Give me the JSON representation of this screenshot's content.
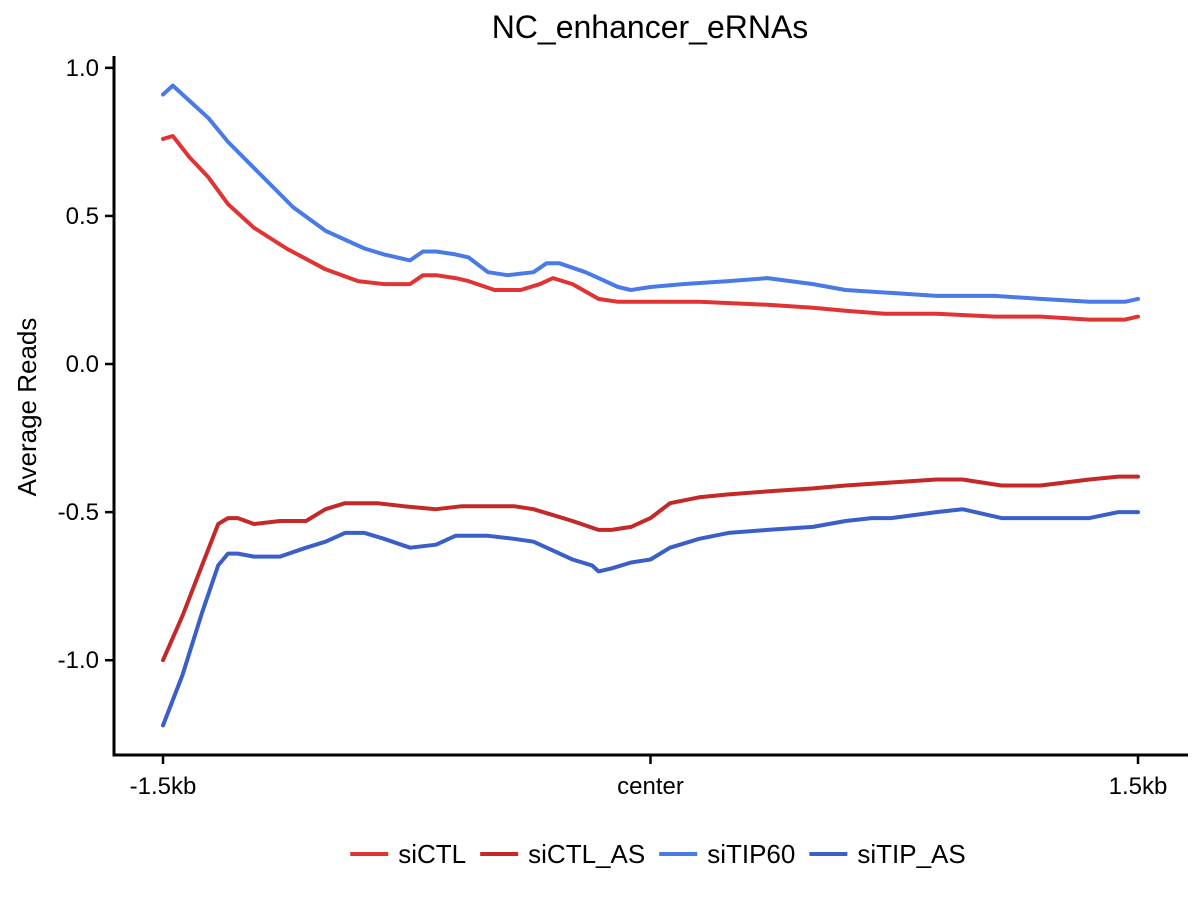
{
  "chart_data": {
    "type": "line",
    "title": "NC_enhancer_eRNAs",
    "xlabel": "",
    "ylabel": "Average Reads",
    "xlim": [
      -1.5,
      1.5
    ],
    "ylim": [
      -1.32,
      1.04
    ],
    "x_ticks": [
      {
        "value": -1.5,
        "label": "-1.5kb"
      },
      {
        "value": 0,
        "label": "center"
      },
      {
        "value": 1.5,
        "label": "1.5kb"
      }
    ],
    "y_ticks": [
      {
        "value": 1.0,
        "label": "1.0"
      },
      {
        "value": 0.5,
        "label": "0.5"
      },
      {
        "value": 0.0,
        "label": "0.0"
      },
      {
        "value": -0.5,
        "label": "-0.5"
      },
      {
        "value": -1.0,
        "label": "-1.0"
      }
    ],
    "legend_position": "bottom",
    "series": [
      {
        "name": "siCTL",
        "color": "#e03434",
        "x": [
          -1.5,
          -1.47,
          -1.42,
          -1.36,
          -1.3,
          -1.22,
          -1.12,
          -1.0,
          -0.9,
          -0.82,
          -0.74,
          -0.7,
          -0.66,
          -0.6,
          -0.56,
          -0.48,
          -0.4,
          -0.34,
          -0.3,
          -0.24,
          -0.16,
          -0.1,
          -0.06,
          0.0,
          0.15,
          0.36,
          0.5,
          0.6,
          0.72,
          0.88,
          1.06,
          1.2,
          1.35,
          1.46,
          1.5
        ],
        "y": [
          0.76,
          0.77,
          0.7,
          0.63,
          0.54,
          0.46,
          0.39,
          0.32,
          0.28,
          0.27,
          0.27,
          0.3,
          0.3,
          0.29,
          0.28,
          0.25,
          0.25,
          0.27,
          0.29,
          0.27,
          0.22,
          0.21,
          0.21,
          0.21,
          0.21,
          0.2,
          0.19,
          0.18,
          0.17,
          0.17,
          0.16,
          0.16,
          0.15,
          0.15,
          0.16
        ]
      },
      {
        "name": "siCTL_AS",
        "color": "#c42828",
        "x": [
          -1.5,
          -1.44,
          -1.38,
          -1.33,
          -1.3,
          -1.27,
          -1.22,
          -1.14,
          -1.06,
          -1.0,
          -0.94,
          -0.84,
          -0.76,
          -0.66,
          -0.58,
          -0.5,
          -0.42,
          -0.36,
          -0.3,
          -0.24,
          -0.16,
          -0.12,
          -0.06,
          0.0,
          0.06,
          0.15,
          0.24,
          0.36,
          0.5,
          0.6,
          0.74,
          0.88,
          0.96,
          1.08,
          1.2,
          1.35,
          1.44,
          1.5
        ],
        "y": [
          -1.0,
          -0.85,
          -0.68,
          -0.54,
          -0.52,
          -0.52,
          -0.54,
          -0.53,
          -0.53,
          -0.49,
          -0.47,
          -0.47,
          -0.48,
          -0.49,
          -0.48,
          -0.48,
          -0.48,
          -0.49,
          -0.51,
          -0.53,
          -0.56,
          -0.56,
          -0.55,
          -0.52,
          -0.47,
          -0.45,
          -0.44,
          -0.43,
          -0.42,
          -0.41,
          -0.4,
          -0.39,
          -0.39,
          -0.41,
          -0.41,
          -0.39,
          -0.38,
          -0.38
        ]
      },
      {
        "name": "siTIP60",
        "color": "#4a7ae6",
        "x": [
          -1.5,
          -1.47,
          -1.42,
          -1.36,
          -1.3,
          -1.2,
          -1.1,
          -1.0,
          -0.88,
          -0.82,
          -0.74,
          -0.7,
          -0.66,
          -0.6,
          -0.56,
          -0.5,
          -0.44,
          -0.36,
          -0.32,
          -0.28,
          -0.2,
          -0.16,
          -0.1,
          -0.06,
          0.0,
          0.1,
          0.24,
          0.36,
          0.5,
          0.6,
          0.74,
          0.88,
          1.06,
          1.2,
          1.35,
          1.46,
          1.5
        ],
        "y": [
          0.91,
          0.94,
          0.89,
          0.83,
          0.75,
          0.64,
          0.53,
          0.45,
          0.39,
          0.37,
          0.35,
          0.38,
          0.38,
          0.37,
          0.36,
          0.31,
          0.3,
          0.31,
          0.34,
          0.34,
          0.31,
          0.29,
          0.26,
          0.25,
          0.26,
          0.27,
          0.28,
          0.29,
          0.27,
          0.25,
          0.24,
          0.23,
          0.23,
          0.22,
          0.21,
          0.21,
          0.22
        ]
      },
      {
        "name": "siTIP_AS",
        "color": "#3a5fc8",
        "x": [
          -1.5,
          -1.44,
          -1.38,
          -1.33,
          -1.3,
          -1.27,
          -1.22,
          -1.14,
          -1.06,
          -1.0,
          -0.94,
          -0.88,
          -0.82,
          -0.74,
          -0.66,
          -0.6,
          -0.5,
          -0.42,
          -0.36,
          -0.3,
          -0.24,
          -0.18,
          -0.16,
          -0.12,
          -0.06,
          0.0,
          0.06,
          0.15,
          0.24,
          0.36,
          0.5,
          0.6,
          0.68,
          0.74,
          0.88,
          0.96,
          1.08,
          1.2,
          1.35,
          1.44,
          1.5
        ],
        "y": [
          -1.22,
          -1.05,
          -0.84,
          -0.68,
          -0.64,
          -0.64,
          -0.65,
          -0.65,
          -0.62,
          -0.6,
          -0.57,
          -0.57,
          -0.59,
          -0.62,
          -0.61,
          -0.58,
          -0.58,
          -0.59,
          -0.6,
          -0.63,
          -0.66,
          -0.68,
          -0.7,
          -0.69,
          -0.67,
          -0.66,
          -0.62,
          -0.59,
          -0.57,
          -0.56,
          -0.55,
          -0.53,
          -0.52,
          -0.52,
          -0.5,
          -0.49,
          -0.52,
          -0.52,
          -0.52,
          -0.5,
          -0.5
        ]
      }
    ]
  }
}
